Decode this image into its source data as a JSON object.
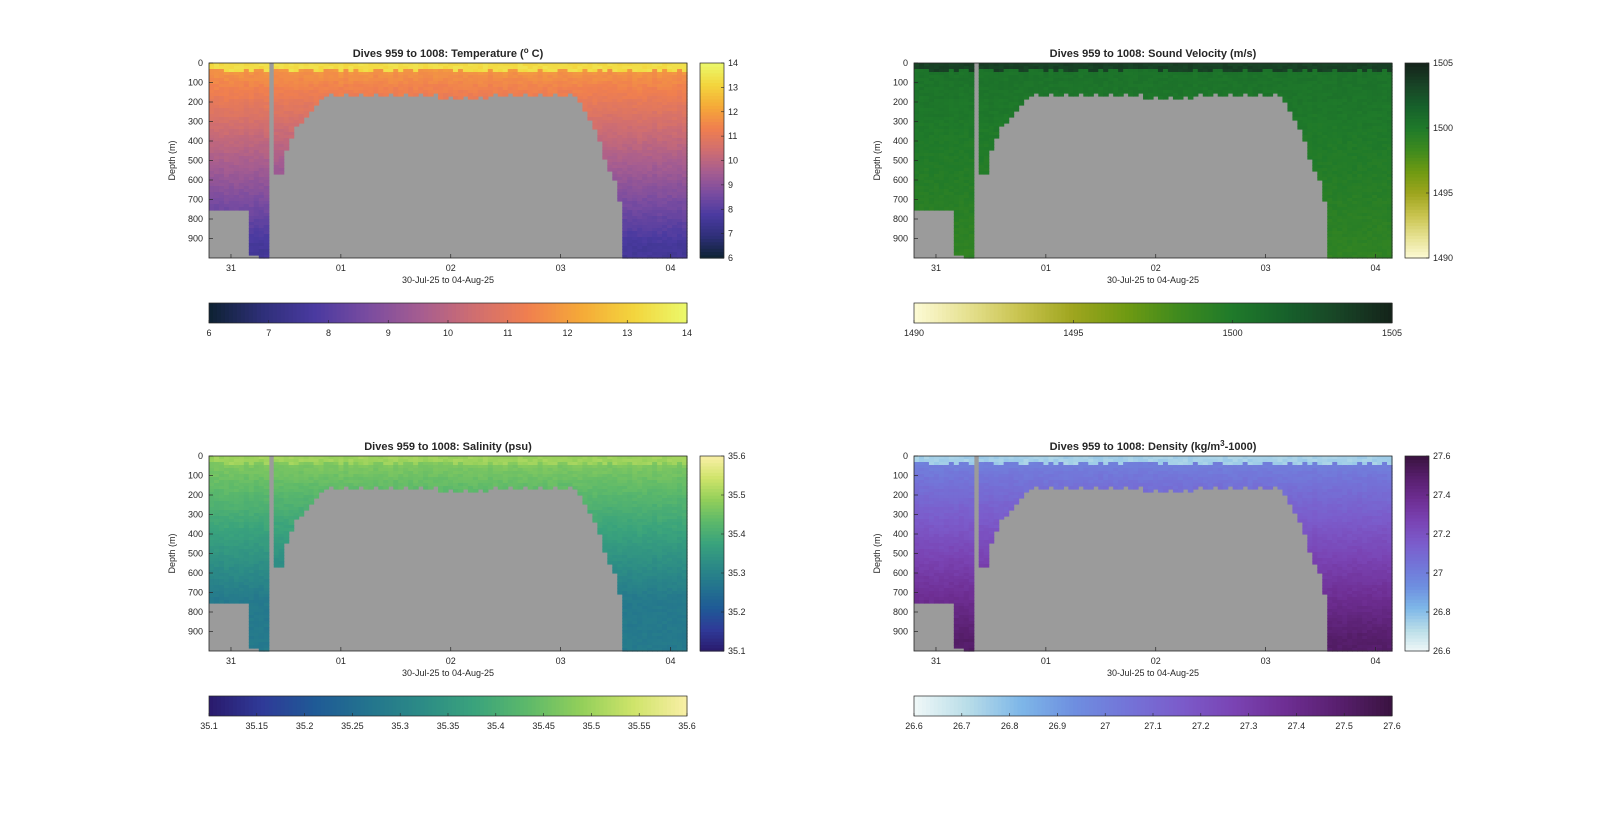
{
  "figure": {
    "background": "#ffffff",
    "mask_color": "#9b9b9b"
  },
  "chart_data": [
    {
      "type": "heatmap",
      "id": "temperature",
      "title": "Dives 959 to 1008: Temperature (",
      "title_sup": "o",
      "title_suffix": " C)",
      "xlabel": "30-Jul-25 to 04-Aug-25",
      "ylabel": "Depth (m)",
      "x_ticks": [
        "31",
        "01",
        "02",
        "03",
        "04"
      ],
      "x_tick_days": [
        31,
        32,
        33,
        34,
        35
      ],
      "xlim_days": [
        30.8,
        35.15
      ],
      "y_ticks": [
        "0",
        "100",
        "200",
        "300",
        "400",
        "500",
        "600",
        "700",
        "800",
        "900"
      ],
      "ylim": [
        0,
        1000
      ],
      "clim": [
        6,
        14
      ],
      "colorbar_ticks": [
        "6",
        "7",
        "8",
        "9",
        "10",
        "11",
        "12",
        "13",
        "14"
      ],
      "h_colorbar_ticks": [
        "6",
        "7",
        "8",
        "9",
        "10",
        "11",
        "12",
        "13",
        "14"
      ],
      "colormap": [
        "#0d2232",
        "#2e2f78",
        "#4a3aa0",
        "#7a4ca0",
        "#a65d90",
        "#d06e70",
        "#f07f4f",
        "#f5a938",
        "#f3d53d",
        "#ebf96b"
      ],
      "profile": {
        "surface": 13.3,
        "mld": 40,
        "thermocline": 11.8,
        "deep": 7.6,
        "decay": 900
      }
    },
    {
      "type": "heatmap",
      "id": "sound_velocity",
      "title": "Dives 959 to 1008: Sound Velocity (m/s)",
      "title_sup": "",
      "title_suffix": "",
      "xlabel": "30-Jul-25 to 04-Aug-25",
      "ylabel": "Depth (m)",
      "x_ticks": [
        "31",
        "01",
        "02",
        "03",
        "04"
      ],
      "x_tick_days": [
        31,
        32,
        33,
        34,
        35
      ],
      "xlim_days": [
        30.8,
        35.15
      ],
      "y_ticks": [
        "0",
        "100",
        "200",
        "300",
        "400",
        "500",
        "600",
        "700",
        "800",
        "900"
      ],
      "ylim": [
        0,
        1000
      ],
      "clim": [
        1490,
        1505
      ],
      "colorbar_ticks": [
        "1490",
        "1495",
        "1500",
        "1505"
      ],
      "h_colorbar_ticks": [
        "1490",
        "1495",
        "1500",
        "1505"
      ],
      "colormap": [
        "#fdfbd6",
        "#e6e191",
        "#c8c34e",
        "#9ea51e",
        "#6f9a12",
        "#3e8a1e",
        "#1f7a2a",
        "#17612b",
        "#184426",
        "#14231a"
      ],
      "profile": {
        "surface": 1503.5,
        "mld": 40,
        "thermocline": 1500.5,
        "deep": 1499.0,
        "decay": 1000
      }
    },
    {
      "type": "heatmap",
      "id": "salinity",
      "title": "Dives 959 to 1008: Salinity (psu)",
      "title_sup": "",
      "title_suffix": "",
      "xlabel": "30-Jul-25 to 04-Aug-25",
      "ylabel": "Depth (m)",
      "x_ticks": [
        "31",
        "01",
        "02",
        "03",
        "04"
      ],
      "x_tick_days": [
        31,
        32,
        33,
        34,
        35
      ],
      "xlim_days": [
        30.8,
        35.15
      ],
      "y_ticks": [
        "0",
        "100",
        "200",
        "300",
        "400",
        "500",
        "600",
        "700",
        "800",
        "900"
      ],
      "ylim": [
        0,
        1000
      ],
      "clim": [
        35.1,
        35.6
      ],
      "colorbar_ticks": [
        "35.1",
        "35.2",
        "35.3",
        "35.4",
        "35.5",
        "35.6"
      ],
      "h_colorbar_ticks": [
        "35.1",
        "35.15",
        "35.2",
        "35.25",
        "35.3",
        "35.35",
        "35.4",
        "35.45",
        "35.5",
        "35.55",
        "35.6"
      ],
      "colormap": [
        "#2a1a6c",
        "#2f3a98",
        "#1f5a96",
        "#23748e",
        "#2c8b86",
        "#3aa37c",
        "#5db96a",
        "#92cf5a",
        "#cfe46a",
        "#f9efa6"
      ],
      "profile": {
        "surface": 35.5,
        "mld": 40,
        "thermocline": 35.47,
        "deep": 35.28,
        "decay": 700
      }
    },
    {
      "type": "heatmap",
      "id": "density",
      "title": "Dives 959 to 1008: Density (kg/m",
      "title_sup": "3",
      "title_suffix": "-1000)",
      "xlabel": "30-Jul-25 to 04-Aug-25",
      "ylabel": "Depth (m)",
      "x_ticks": [
        "31",
        "01",
        "02",
        "03",
        "04"
      ],
      "x_tick_days": [
        31,
        32,
        33,
        34,
        35
      ],
      "xlim_days": [
        30.8,
        35.15
      ],
      "y_ticks": [
        "0",
        "100",
        "200",
        "300",
        "400",
        "500",
        "600",
        "700",
        "800",
        "900"
      ],
      "ylim": [
        0,
        1000
      ],
      "clim": [
        26.6,
        27.6
      ],
      "colorbar_ticks": [
        "26.6",
        "26.8",
        "27",
        "27.2",
        "27.4",
        "27.6"
      ],
      "h_colorbar_ticks": [
        "26.6",
        "26.7",
        "26.8",
        "26.9",
        "27",
        "27.1",
        "27.2",
        "27.3",
        "27.4",
        "27.5",
        "27.6"
      ],
      "colormap": [
        "#f0f8f8",
        "#b9dde8",
        "#7eb7e8",
        "#6e8fe0",
        "#7374d8",
        "#7b5ccb",
        "#7a44b4",
        "#6e2e93",
        "#581f6e",
        "#3a1340"
      ],
      "profile": {
        "surface": 26.75,
        "mld": 40,
        "thermocline": 27.0,
        "deep": 27.5,
        "decay": 900
      }
    }
  ]
}
